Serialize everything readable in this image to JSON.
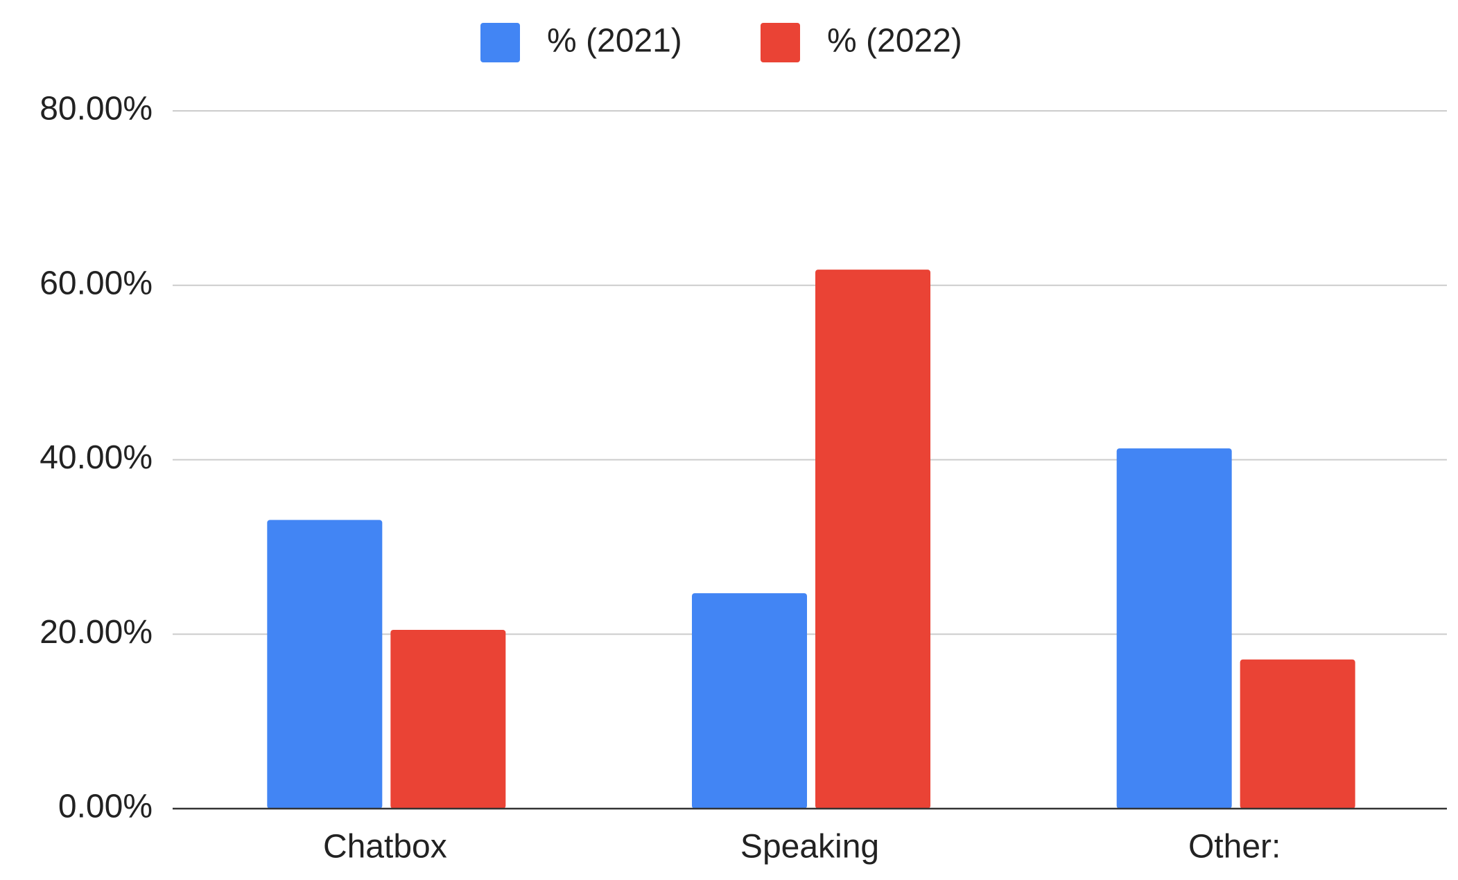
{
  "chart_data": {
    "type": "bar",
    "categories": [
      "Chatbox",
      "Speaking",
      "Other:"
    ],
    "series": [
      {
        "name": "% (2021)",
        "color": "#4285f4",
        "values": [
          33.1,
          24.7,
          41.3
        ]
      },
      {
        "name": "% (2022)",
        "color": "#ea4335",
        "values": [
          20.5,
          61.8,
          17.1
        ]
      }
    ],
    "ylim": [
      0,
      80
    ],
    "yticks": [
      {
        "value": 0,
        "label": "0.00%"
      },
      {
        "value": 20,
        "label": "20.00%"
      },
      {
        "value": 40,
        "label": "40.00%"
      },
      {
        "value": 60,
        "label": "60.00%"
      },
      {
        "value": 80,
        "label": "80.00%"
      }
    ],
    "grid": true,
    "legend": "top"
  }
}
